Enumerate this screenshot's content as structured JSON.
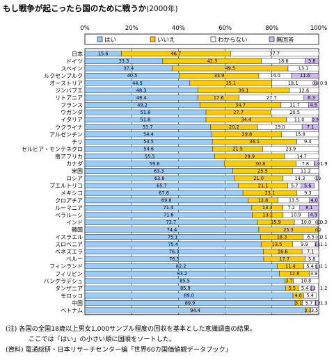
{
  "title": "もし戦争が起こったら国のために戦うか",
  "subtitle": "(2000年)",
  "chart_data": {
    "type": "bar",
    "orientation": "horizontal",
    "stacked": true,
    "xlim": [
      0,
      100
    ],
    "x_ticks": [
      "0%",
      "20%",
      "40%",
      "60%",
      "80%",
      "100%"
    ],
    "legend_position": "top",
    "grid": true,
    "categories": [
      "日本",
      "ドイツ",
      "スペイン",
      "ルクセンブルク",
      "オーストリア",
      "ジンバブエ",
      "リトアニア",
      "フランス",
      "ウガンダ",
      "イタリア",
      "ウクライナ",
      "アルゼンチン",
      "チリ",
      "セルビア・モンテネグロ",
      "南アフリカ",
      "カナダ",
      "米国",
      "ロシア",
      "プエルトリコ",
      "メキシコ",
      "クロアチア",
      "ルーマニア",
      "ベラルーシ",
      "インド",
      "韓国",
      "イスラエル",
      "スロベニア",
      "ベネズエラ",
      "ペルー",
      "フィンランド",
      "フィリピン",
      "バングラデシュ",
      "タンザニア",
      "モロッコ",
      "中国",
      "ベトナム"
    ],
    "series": [
      {
        "name": "はい",
        "color": "#99ccff",
        "values": [
          15.6,
          33.3,
          37.4,
          40.5,
          44.9,
          48.3,
          48.4,
          49.2,
          51.8,
          51.8,
          53.7,
          54.4,
          54.5,
          54.6,
          55.5,
          59.6,
          63.3,
          63.8,
          65.7,
          67.6,
          69.8,
          71.4,
          71.6,
          73.7,
          74.4,
          75.1,
          75.4,
          76.3,
          76.5,
          82.2,
          83.2,
          85.5,
          85.9,
          89.0,
          89.9,
          94.4
        ]
      },
      {
        "name": "いいえ",
        "color": "#ffcc00",
        "values": [
          46.7,
          42.3,
          49.5,
          33.9,
          35.1,
          39.1,
          17.6,
          34.7,
          27.7,
          34.4,
          20.2,
          29.8,
          36.1,
          21.5,
          29.9,
          30.8,
          25.5,
          21.0,
          21.1,
          23.1,
          12.8,
          13.3,
          13.2,
          15.9,
          25.3,
          18.3,
          13.5,
          16.6,
          17.7,
          11.4,
          12.8,
          3.7,
          5.5,
          4.6,
          3.1,
          2.1
        ]
      },
      {
        "name": "わからない",
        "color": "#ffffff",
        "values": [
          37.7,
          18.6,
          13.1,
          14.0,
          18.1,
          12.6,
          27.7,
          11.7,
          20.5,
          11.0,
          19.0,
          15.8,
          9.4,
          23.9,
          14.7,
          7.8,
          11.2,
          14.3,
          5.7,
          9.3,
          13.5,
          7.2,
          10.9,
          10.0,
          0.2,
          6.5,
          9.9,
          7.1,
          5.8,
          5.4,
          3.9,
          10.8,
          5.4,
          5.4,
          5.7,
          3.5
        ]
      },
      {
        "name": "無回答",
        "color": "#ccb8f5",
        "values": [
          0,
          5.8,
          0,
          11.6,
          0.9,
          0,
          6.3,
          4.5,
          0,
          2.9,
          7.1,
          0,
          0,
          0,
          0,
          1.9,
          0,
          0.9,
          5.6,
          0,
          4.0,
          8.1,
          4.3,
          0.3,
          0,
          0.1,
          1.1,
          0,
          0,
          1.1,
          0,
          0,
          1.2,
          0,
          1.3,
          0
        ]
      }
    ],
    "labels": [
      [
        "15.6",
        "46.7",
        "37.7",
        ""
      ],
      [
        "33.3",
        "42.3",
        "18.6",
        "5.8"
      ],
      [
        "37.4",
        "49.5",
        "13.1",
        ""
      ],
      [
        "40.5",
        "33.9",
        "14.0",
        "11.6"
      ],
      [
        "44.9",
        "35.1",
        "18.1",
        "0.9"
      ],
      [
        "48.3",
        "39.1",
        "12.6",
        ""
      ],
      [
        "48.4",
        "17.6",
        "27.7",
        "6.3"
      ],
      [
        "49.2",
        "34.7",
        "11.7",
        "4.5"
      ],
      [
        "51.8",
        "27.7",
        "20.5",
        ""
      ],
      [
        "51.8",
        "34.4",
        "11.0",
        "2.9"
      ],
      [
        "53.7",
        "20.2",
        "19.0",
        "7.1"
      ],
      [
        "54.4",
        "29.8",
        "15.8",
        ""
      ],
      [
        "54.5",
        "36.1",
        "9.4",
        ""
      ],
      [
        "54.6",
        "21.5",
        "23.9",
        ""
      ],
      [
        "55.5",
        "29.9",
        "14.7",
        ""
      ],
      [
        "59.6",
        "30.8",
        "7.8",
        "1.9"
      ],
      [
        "63.3",
        "25.5",
        "11.2",
        ""
      ],
      [
        "63.8",
        "21.0",
        "14.3",
        "0.9"
      ],
      [
        "65.7",
        "21.1",
        "5.7",
        "5.6"
      ],
      [
        "67.6",
        "23.1",
        "9.3",
        ""
      ],
      [
        "69.8",
        "12.8",
        "13.5",
        "4.0"
      ],
      [
        "71.4",
        "13.3",
        "7.2",
        "8.1"
      ],
      [
        "71.6",
        "13.2",
        "10.9",
        "4.3"
      ],
      [
        "73.7",
        "15.9",
        "10.0",
        "0.3"
      ],
      [
        "74.4",
        "25.3",
        "0.2",
        ""
      ],
      [
        "75.1",
        "18.3",
        "6.5",
        "0.1"
      ],
      [
        "75.4",
        "13.5",
        "9.9",
        "1.1"
      ],
      [
        "76.3",
        "16.6",
        "7.1",
        ""
      ],
      [
        "76.5",
        "17.7",
        "5.8",
        ""
      ],
      [
        "82.2",
        "11.4",
        "5.4",
        "1.1"
      ],
      [
        "83.2",
        "12.8",
        "3.9",
        ""
      ],
      [
        "85.5",
        "3.7",
        "10.8",
        ""
      ],
      [
        "85.9",
        "5.5",
        "5.4",
        "1.2"
      ],
      [
        "89.0",
        "4.6",
        "5.4",
        ""
      ],
      [
        "89.9",
        "3.1",
        "5.7",
        "1.3"
      ],
      [
        "94.4",
        "2.1",
        "3.5",
        ""
      ]
    ],
    "outside_labels": [
      "",
      "",
      "",
      "",
      "0.9",
      "",
      "",
      "",
      "",
      "",
      "",
      "",
      "",
      "",
      "",
      "1.9",
      "",
      "",
      "",
      "",
      "",
      "",
      "",
      "0.3",
      "",
      "0.1",
      "1.1",
      "",
      "",
      "1.1",
      "",
      "",
      "1.2",
      "",
      "1.3",
      ""
    ]
  },
  "notes": [
    "(注) 各国の全国18歳以上男女1,000サンプル程度の回収を基本とした意識調査の結果。",
    "ここでは「はい」の小さい順に国順をソートした。",
    "(資料) 電通総研・日本リサーチセンター編「世界60カ国価値観データブック」"
  ]
}
